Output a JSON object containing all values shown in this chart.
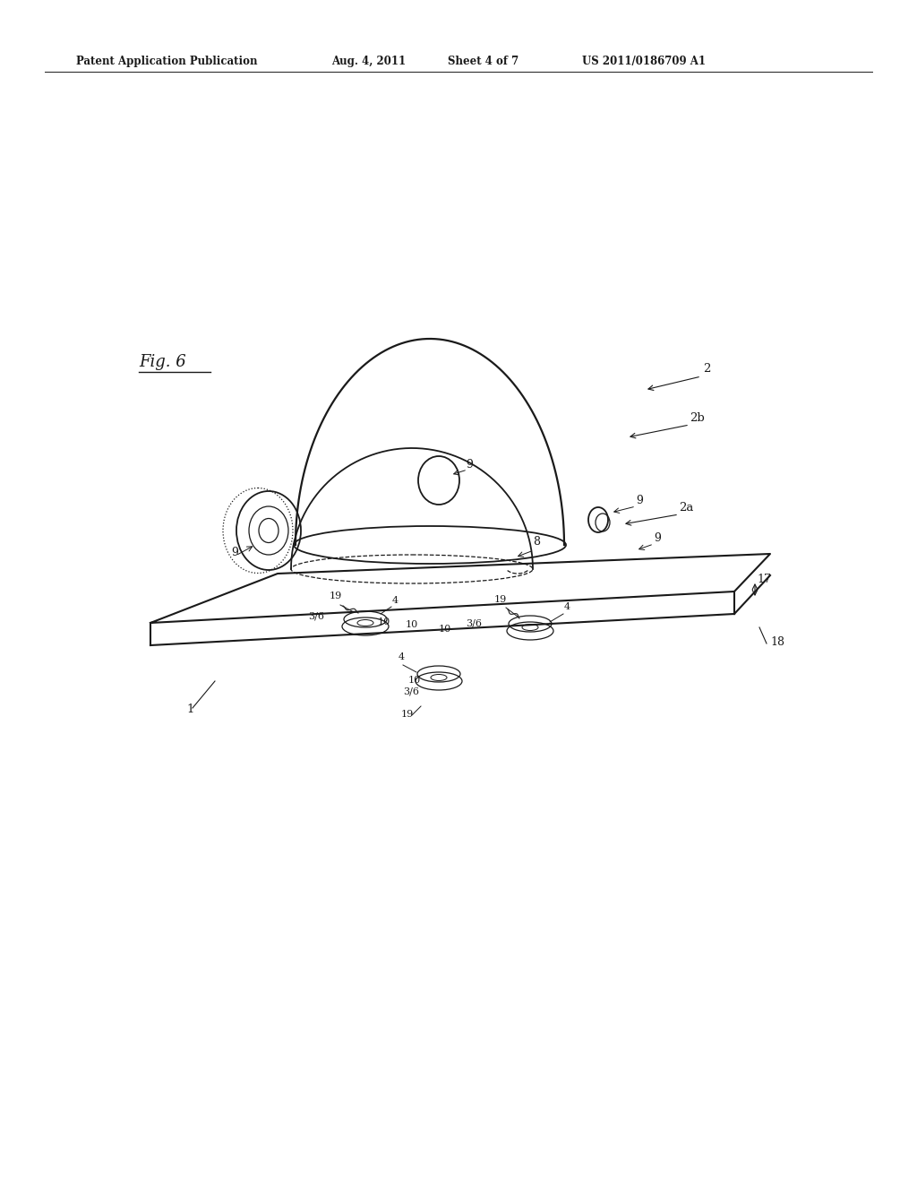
{
  "bg_color": "#ffffff",
  "line_color": "#1a1a1a",
  "header_text": "Patent Application Publication",
  "header_date": "Aug. 4, 2011",
  "header_sheet": "Sheet 4 of 7",
  "header_patent": "US 2011/0186709 A1",
  "fig_label": "Fig. 6",
  "figsize": [
    10.24,
    13.2
  ],
  "dpi": 100
}
